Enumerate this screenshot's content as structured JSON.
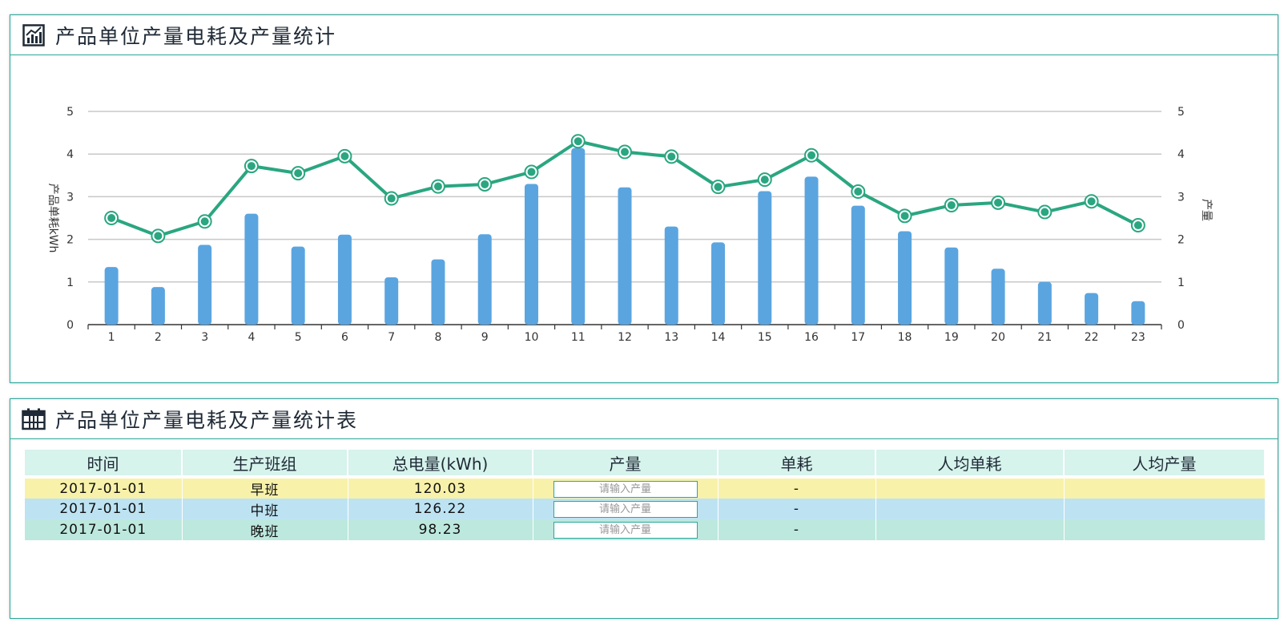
{
  "chart_panel": {
    "title": "产品单位产量电耗及产量统计",
    "icon": "line-chart-icon"
  },
  "table_panel": {
    "title": "产品单位产量电耗及产量统计表",
    "icon": "calendar-icon"
  },
  "chart_data": {
    "type": "bar+line",
    "categories": [
      "1",
      "2",
      "3",
      "4",
      "5",
      "6",
      "7",
      "8",
      "9",
      "10",
      "11",
      "12",
      "13",
      "14",
      "15",
      "16",
      "17",
      "18",
      "19",
      "20",
      "21",
      "22",
      "23"
    ],
    "series": [
      {
        "type": "bar",
        "values": [
          1.35,
          0.88,
          1.87,
          2.6,
          1.83,
          2.11,
          1.11,
          1.53,
          2.12,
          3.3,
          4.14,
          3.22,
          2.3,
          1.93,
          3.13,
          3.47,
          2.79,
          2.19,
          1.81,
          1.31,
          1.0,
          0.74,
          0.55
        ],
        "color": "#5aa5e0"
      },
      {
        "type": "line",
        "values": [
          2.5,
          2.08,
          2.42,
          3.72,
          3.55,
          3.95,
          2.96,
          3.24,
          3.29,
          3.58,
          4.3,
          4.05,
          3.94,
          3.23,
          3.4,
          3.97,
          3.12,
          2.55,
          2.8,
          2.86,
          2.64,
          2.89,
          2.33
        ],
        "color": "#2aa680"
      }
    ],
    "ylabel_left": "产品单耗kWh",
    "ylabel_right": "产量",
    "ylim_left": [
      0,
      5
    ],
    "ylim_right": [
      0,
      5
    ],
    "yticks": [
      "0",
      "1",
      "2",
      "3",
      "4",
      "5"
    ],
    "grid": true
  },
  "table": {
    "headers": [
      "时间",
      "生产班组",
      "总电量(kWh)",
      "产量",
      "单耗",
      "人均单耗",
      "人均产量"
    ],
    "rows": [
      {
        "date": "2017-01-01",
        "shift": "早班",
        "power": "120.03",
        "qty_placeholder": "请输入产量",
        "unit": "-",
        "avg_unit": "",
        "avg_qty": ""
      },
      {
        "date": "2017-01-01",
        "shift": "中班",
        "power": "126.22",
        "qty_placeholder": "请输入产量",
        "unit": "-",
        "avg_unit": "",
        "avg_qty": ""
      },
      {
        "date": "2017-01-01",
        "shift": "晚班",
        "power": "98.23",
        "qty_placeholder": "请输入产量",
        "unit": "-",
        "avg_unit": "",
        "avg_qty": ""
      }
    ]
  }
}
